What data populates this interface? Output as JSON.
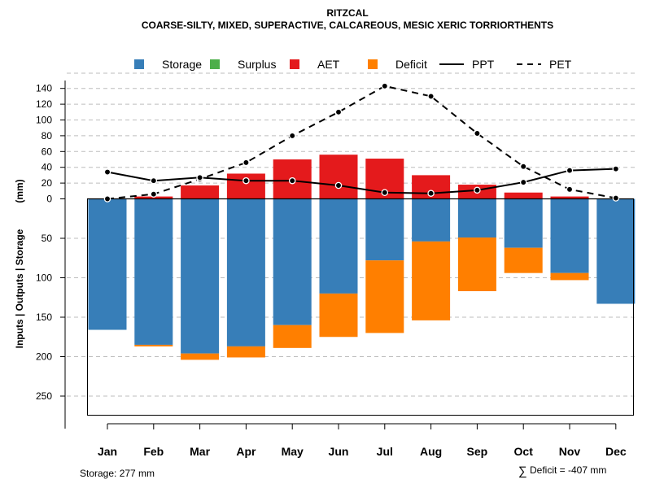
{
  "chart_data": {
    "type": "bar",
    "title": "RITZCAL",
    "subtitle": "COARSE-SILTY, MIXED, SUPERACTIVE, CALCAREOUS, MESIC XERIC TORRIORTHENTS",
    "ylabel": "Inputs | Outputs | Storage",
    "ylabel_units": "(mm)",
    "categories": [
      "Jan",
      "Feb",
      "Mar",
      "Apr",
      "May",
      "Jun",
      "Jul",
      "Aug",
      "Sep",
      "Oct",
      "Nov",
      "Dec"
    ],
    "upper_ticks": [
      0,
      20,
      40,
      60,
      80,
      100,
      120,
      140
    ],
    "lower_ticks": [
      50,
      100,
      150,
      200,
      250
    ],
    "upper_ylim": [
      0,
      150
    ],
    "lower_ylim": [
      0,
      277
    ],
    "legend": [
      {
        "key": "storage",
        "label": "Storage",
        "kind": "box",
        "color": "#377EB8"
      },
      {
        "key": "surplus",
        "label": "Surplus",
        "kind": "box",
        "color": "#4DAF4A"
      },
      {
        "key": "aet",
        "label": "AET",
        "kind": "box",
        "color": "#E41A1C"
      },
      {
        "key": "deficit",
        "label": "Deficit",
        "kind": "box",
        "color": "#FF7F00"
      },
      {
        "key": "ppt",
        "label": "PPT",
        "kind": "solid",
        "color": "#000000"
      },
      {
        "key": "pet",
        "label": "PET",
        "kind": "dashed",
        "color": "#000000"
      }
    ],
    "series": [
      {
        "name": "AET",
        "values": [
          0,
          3,
          17,
          32,
          50,
          56,
          51,
          30,
          18,
          8,
          3,
          0
        ]
      },
      {
        "name": "Storage",
        "values": [
          166,
          185,
          196,
          187,
          160,
          120,
          78,
          54,
          49,
          62,
          94,
          133
        ]
      },
      {
        "name": "Deficit",
        "values": [
          0,
          2,
          8,
          14,
          29,
          55,
          92,
          100,
          68,
          32,
          9,
          0
        ]
      },
      {
        "name": "PPT",
        "values": [
          34,
          23,
          27,
          23,
          23,
          17,
          8,
          7,
          11,
          21,
          36,
          38
        ]
      },
      {
        "name": "PET",
        "values": [
          0,
          6,
          25,
          46,
          80,
          110,
          143,
          130,
          83,
          41,
          12,
          1
        ]
      }
    ]
  },
  "footer": {
    "storage_note": "Storage: 277 mm",
    "deficit_symbol": "∑",
    "deficit_note": "Deficit = -407 mm"
  }
}
